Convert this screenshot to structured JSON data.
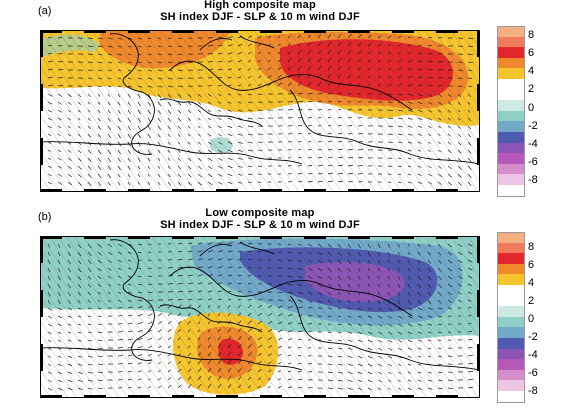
{
  "panels": [
    {
      "label": "(a)",
      "title_line1": "High composite map",
      "title_line2": "SH index DJF - SLP & 10 m wind DJF"
    },
    {
      "label": "(b)",
      "title_line1": "Low composite map",
      "title_line2": "SH index DJF - SLP & 10 m wind DJF"
    }
  ],
  "colorbar": {
    "tick_labels": [
      "8",
      "6",
      "4",
      "2",
      "0",
      "-2",
      "-4",
      "-6",
      "-8"
    ],
    "colors": [
      "#f4b083",
      "#ee7b5b",
      "#e3262b",
      "#f0882c",
      "#f6c52e",
      "#ffffff",
      "#ffffff",
      "#cde9e3",
      "#8fd0c6",
      "#72a9c9",
      "#4f5ab0",
      "#8c55b5",
      "#b558b8",
      "#d58ecc",
      "#ecc6e4",
      "#ffffff"
    ]
  },
  "map_colors": {
    "high_red": "#e3262b",
    "high_orange": "#f0882c",
    "high_yellow": "#f6c52e",
    "low_blue": "#4f5ab0",
    "low_purple": "#8c55b5",
    "low_teal": "#8fd0c6"
  }
}
